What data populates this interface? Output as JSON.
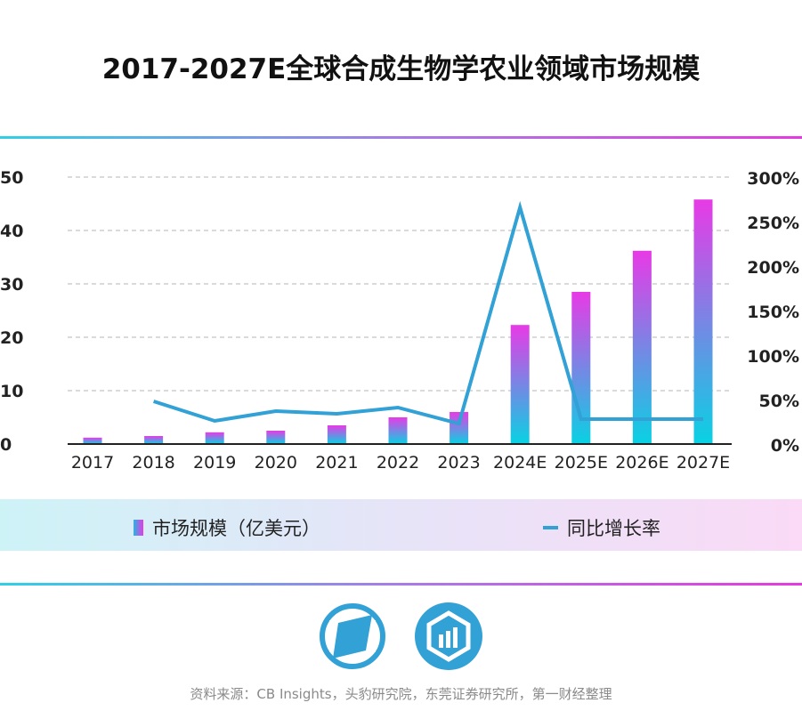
{
  "chart_data": {
    "type": "bar",
    "title": "2017-2027E全球合成生物学农业领域市场规模",
    "categories": [
      "2017",
      "2018",
      "2019",
      "2020",
      "2021",
      "2022",
      "2023",
      "2024E",
      "2025E",
      "2026E",
      "2027E"
    ],
    "series": [
      {
        "name": "市场规模（亿美元）",
        "type": "bar",
        "axis": "left",
        "values": [
          1.2,
          1.5,
          2.2,
          2.5,
          3.5,
          5.0,
          6.0,
          22.3,
          28.5,
          36.2,
          45.8
        ]
      },
      {
        "name": "同比增长率",
        "type": "line",
        "axis": "right",
        "values": [
          null,
          48,
          26,
          37,
          34,
          41,
          23,
          266,
          28,
          28,
          28
        ]
      }
    ],
    "y_left": {
      "range": [
        0,
        50
      ],
      "ticks": [
        "0",
        "10",
        "20",
        "30",
        "40",
        "50"
      ]
    },
    "y_right": {
      "range": [
        0,
        300
      ],
      "ticks": [
        "0%",
        "50%",
        "100%",
        "150%",
        "200%",
        "250%",
        "300%"
      ]
    },
    "grid": true,
    "legend_position": "bottom",
    "colors": {
      "bar_top": "#e83ae6",
      "bar_bottom": "#08d2e3",
      "line": "#31a1d6"
    }
  },
  "source": "资料来源：CB Insights，头豹研究院，东莞证券研究所，第一财经整理"
}
